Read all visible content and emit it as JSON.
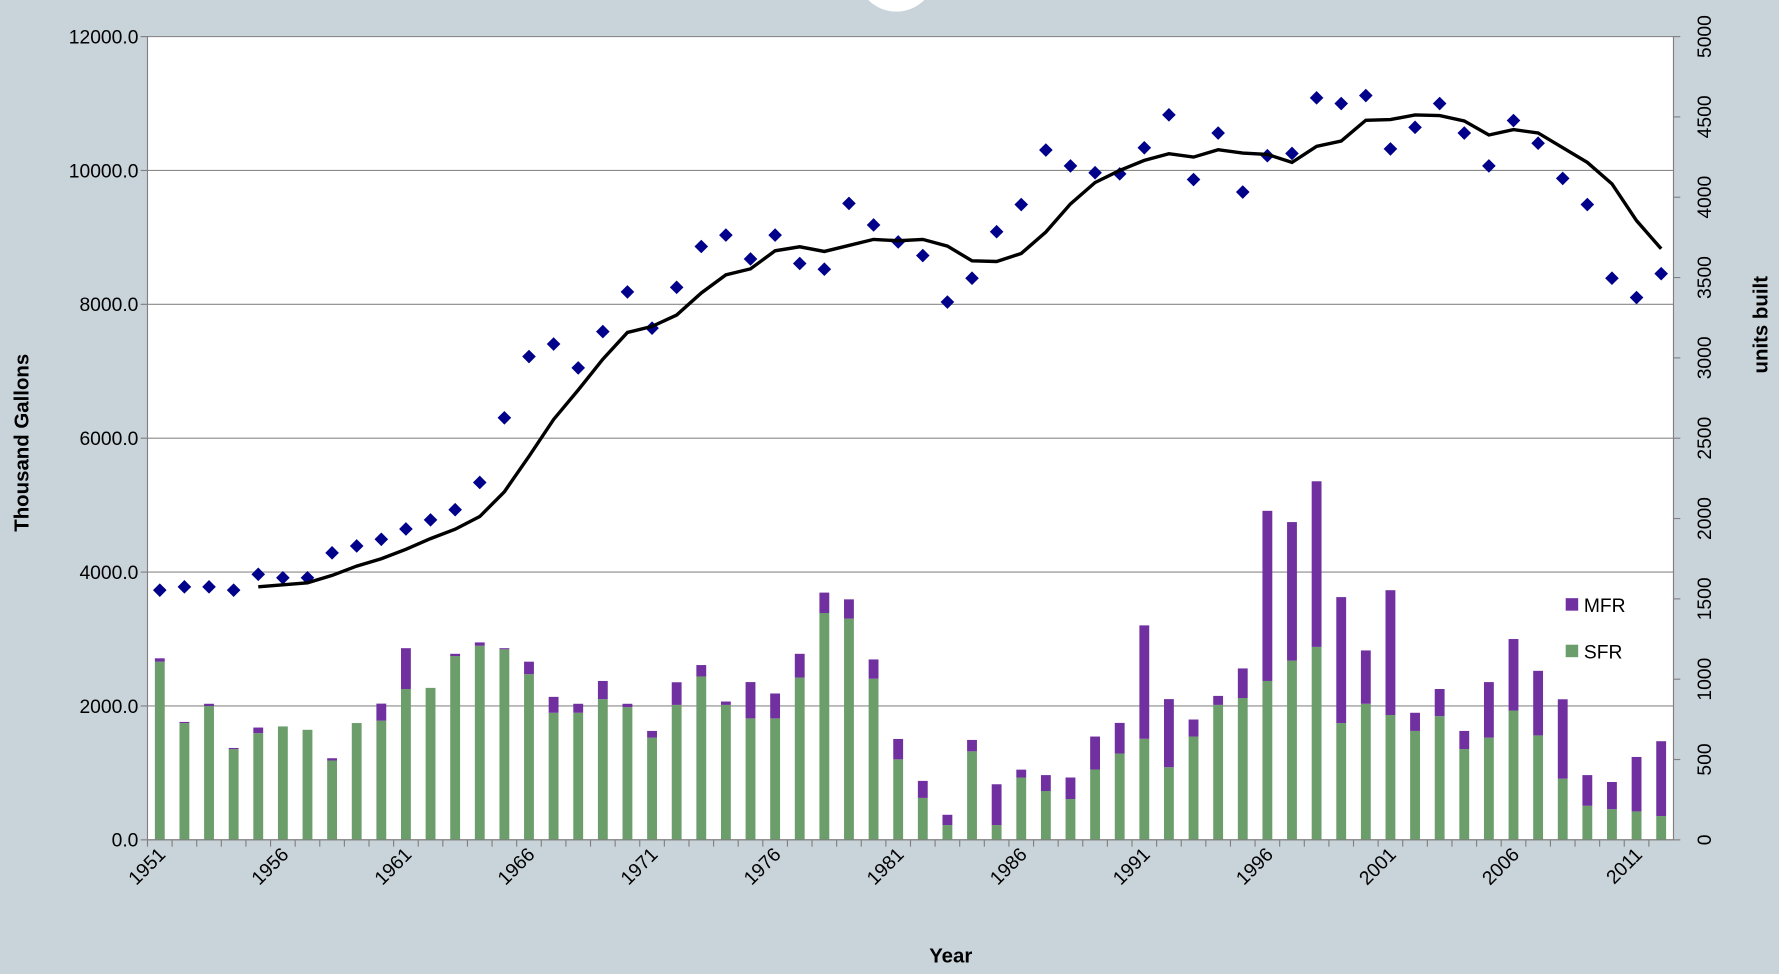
{
  "chart_data": {
    "type": "combo",
    "xlabel": "Year",
    "ylabel": "Thousand Gallons",
    "y2label": "units built",
    "x": [
      1951,
      1952,
      1953,
      1954,
      1955,
      1956,
      1957,
      1958,
      1959,
      1960,
      1961,
      1962,
      1963,
      1964,
      1965,
      1966,
      1967,
      1968,
      1969,
      1970,
      1971,
      1972,
      1973,
      1974,
      1975,
      1976,
      1977,
      1978,
      1979,
      1980,
      1981,
      1982,
      1983,
      1984,
      1985,
      1986,
      1987,
      1988,
      1989,
      1990,
      1991,
      1992,
      1993,
      1994,
      1995,
      1996,
      1997,
      1998,
      1999,
      2000,
      2001,
      2002,
      2003,
      2004,
      2005,
      2006,
      2007,
      2008,
      2009,
      2010,
      2011,
      2012
    ],
    "xlim": [
      1950.5,
      2012.5
    ],
    "xticks": [
      1951,
      1956,
      1961,
      1966,
      1971,
      1976,
      1981,
      1986,
      1991,
      1996,
      2001,
      2006,
      2011
    ],
    "ylim": [
      0,
      12000
    ],
    "yticks": [
      {
        "value": 0,
        "label": "0.0"
      },
      {
        "value": 2000,
        "label": "2000.0"
      },
      {
        "value": 4000,
        "label": "4000.0"
      },
      {
        "value": 6000,
        "label": "6000.0"
      },
      {
        "value": 8000,
        "label": "8000.0"
      },
      {
        "value": 10000,
        "label": "10000.0"
      },
      {
        "value": 12000,
        "label": "12000.0"
      }
    ],
    "y2lim": [
      0,
      5000
    ],
    "y2ticks": [
      0,
      500,
      1000,
      1500,
      2000,
      2500,
      3000,
      3500,
      4000,
      4500,
      5000
    ],
    "grid": true,
    "legend": "right",
    "series": [
      {
        "name": "SFR",
        "type": "bar",
        "axis": "y2",
        "color": "#6b9e6b",
        "values": [
          1109,
          727,
          833,
          565,
          664,
          706,
          685,
          494,
          727,
          742,
          939,
          946,
          1144,
          1208,
          1186,
          1031,
          791,
          791,
          876,
          826,
          636,
          840,
          1017,
          840,
          756,
          756,
          1010,
          1412,
          1377,
          1003,
          501,
          261,
          92,
          551,
          92,
          388,
          304,
          254,
          438,
          537,
          629,
          452,
          643,
          840,
          883,
          989,
          1116,
          1201,
          727,
          847,
          777,
          678,
          770,
          565,
          636,
          805,
          650,
          381,
          212,
          191,
          177,
          148
        ]
      },
      {
        "name": "MFR",
        "type": "bar",
        "axis": "y2",
        "color": "#7030a0",
        "values": [
          21,
          7,
          14,
          7,
          35,
          0,
          0,
          14,
          0,
          106,
          254,
          0,
          14,
          21,
          7,
          78,
          99,
          56,
          113,
          21,
          42,
          141,
          71,
          21,
          226,
          155,
          148,
          127,
          120,
          120,
          127,
          106,
          64,
          71,
          254,
          49,
          99,
          134,
          205,
          191,
          706,
          424,
          106,
          56,
          184,
          1059,
          862,
          1031,
          784,
          332,
          777,
          113,
          169,
          113,
          346,
          445,
          402,
          494,
          191,
          169,
          339,
          466
        ]
      },
      {
        "type": "scatter",
        "color": "#00008b",
        "values": [
          3730,
          3780,
          3780,
          3730,
          3966,
          3915,
          3915,
          4288,
          4390,
          4490,
          4644,
          4780,
          4932,
          5339,
          6305,
          7220,
          7407,
          7050,
          7593,
          8186,
          7644,
          8254,
          8864,
          9034,
          8678,
          9034,
          8610,
          8525,
          9508,
          9186,
          8932,
          8729,
          8034,
          8390,
          9085,
          9491,
          10305,
          10068,
          9966,
          9949,
          10339,
          10831,
          9864,
          10559,
          9678,
          10220,
          10254,
          11085,
          11000,
          11119,
          10322,
          10644,
          11000,
          10559,
          10068,
          10746,
          10407,
          9881,
          9491,
          8390,
          8102,
          8458
        ]
      },
      {
        "type": "line",
        "color": "#000000",
        "values": [
          null,
          null,
          null,
          null,
          3780,
          3810,
          3840,
          3950,
          4090,
          4200,
          4340,
          4500,
          4640,
          4830,
          5200,
          5730,
          6280,
          6720,
          7180,
          7580,
          7670,
          7840,
          8170,
          8440,
          8530,
          8800,
          8860,
          8790,
          8880,
          8970,
          8950,
          8970,
          8870,
          8650,
          8640,
          8760,
          9080,
          9500,
          9820,
          10000,
          10150,
          10250,
          10200,
          10310,
          10260,
          10240,
          10120,
          10360,
          10440,
          10750,
          10760,
          10830,
          10820,
          10740,
          10530,
          10610,
          10560,
          10340,
          10120,
          9800,
          9250,
          8830
        ]
      }
    ]
  }
}
